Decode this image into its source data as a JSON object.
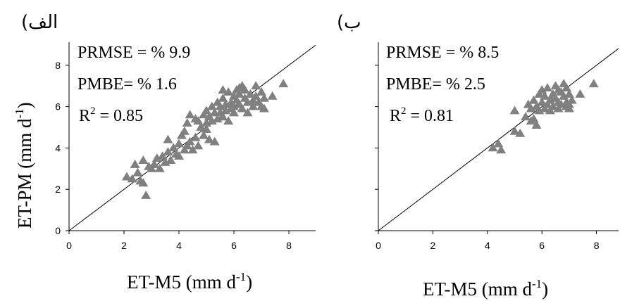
{
  "chart_data": [
    {
      "type": "scatter",
      "panel_label": "(الف",
      "xlabel": "ET-M5 (mm d-1)",
      "xlabel_main": "ET-M5 (mm d",
      "xlabel_sup": "-1",
      "xlabel_tail": ")",
      "ylabel_main": "ET-PM (mm d",
      "ylabel_sup": "-1",
      "ylabel_tail": ")",
      "xlim": [
        0,
        9
      ],
      "ylim": [
        0,
        9
      ],
      "xticks": [
        "0",
        "2",
        "4",
        "6",
        "8"
      ],
      "yticks": [
        "0",
        "2",
        "4",
        "6",
        "8"
      ],
      "reference_line": "1:1",
      "stats": {
        "prmse": "PRMSE = % 9.9",
        "pmbe": "PMBE= % 1.6",
        "r2_main": "R",
        "r2_sup": "2",
        "r2_tail": " = 0.85"
      },
      "points": [
        [
          2.1,
          2.6
        ],
        [
          2.3,
          2.5
        ],
        [
          2.4,
          3.2
        ],
        [
          2.5,
          2.8
        ],
        [
          2.6,
          2.4
        ],
        [
          2.7,
          2.3
        ],
        [
          2.8,
          1.7
        ],
        [
          2.7,
          3.4
        ],
        [
          2.9,
          3.1
        ],
        [
          3.0,
          3.0
        ],
        [
          3.1,
          3.2
        ],
        [
          3.2,
          3.5
        ],
        [
          3.3,
          3.0
        ],
        [
          3.4,
          3.6
        ],
        [
          3.5,
          3.3
        ],
        [
          3.6,
          3.8
        ],
        [
          3.6,
          4.4
        ],
        [
          3.7,
          3.4
        ],
        [
          3.8,
          4.0
        ],
        [
          3.9,
          3.7
        ],
        [
          4.0,
          4.2
        ],
        [
          4.0,
          3.6
        ],
        [
          4.1,
          4.6
        ],
        [
          4.2,
          3.9
        ],
        [
          4.2,
          4.8
        ],
        [
          4.3,
          4.1
        ],
        [
          4.3,
          5.2
        ],
        [
          4.4,
          4.3
        ],
        [
          4.4,
          5.6
        ],
        [
          4.5,
          3.9
        ],
        [
          4.6,
          4.5
        ],
        [
          4.6,
          5.4
        ],
        [
          4.7,
          4.1
        ],
        [
          4.8,
          5.0
        ],
        [
          4.9,
          5.6
        ],
        [
          4.9,
          4.6
        ],
        [
          5.0,
          5.8
        ],
        [
          5.0,
          4.9
        ],
        [
          5.1,
          5.5
        ],
        [
          5.1,
          4.4
        ],
        [
          5.2,
          6.0
        ],
        [
          5.2,
          5.3
        ],
        [
          5.3,
          5.7
        ],
        [
          5.3,
          4.3
        ],
        [
          5.4,
          6.2
        ],
        [
          5.4,
          5.4
        ],
        [
          5.5,
          6.0
        ],
        [
          5.5,
          5.7
        ],
        [
          5.6,
          6.4
        ],
        [
          5.6,
          5.5
        ],
        [
          5.7,
          6.1
        ],
        [
          5.7,
          5.8
        ],
        [
          5.8,
          6.7
        ],
        [
          5.8,
          5.3
        ],
        [
          5.9,
          6.2
        ],
        [
          5.9,
          5.9
        ],
        [
          6.0,
          6.5
        ],
        [
          6.0,
          6.0
        ],
        [
          6.0,
          5.7
        ],
        [
          6.1,
          6.8
        ],
        [
          6.1,
          6.3
        ],
        [
          6.2,
          6.1
        ],
        [
          6.2,
          6.6
        ],
        [
          6.3,
          7.0
        ],
        [
          6.3,
          5.9
        ],
        [
          6.4,
          6.4
        ],
        [
          6.4,
          6.8
        ],
        [
          6.5,
          6.2
        ],
        [
          6.5,
          5.7
        ],
        [
          6.6,
          6.6
        ],
        [
          6.7,
          6.3
        ],
        [
          6.7,
          6.0
        ],
        [
          6.8,
          7.0
        ],
        [
          6.8,
          6.5
        ],
        [
          6.9,
          6.2
        ],
        [
          7.0,
          6.7
        ],
        [
          7.0,
          6.0
        ],
        [
          7.1,
          6.4
        ],
        [
          7.1,
          5.9
        ],
        [
          7.4,
          6.5
        ],
        [
          7.8,
          7.1
        ],
        [
          5.6,
          6.8
        ],
        [
          5.0,
          5.2
        ],
        [
          4.7,
          5.3
        ],
        [
          6.2,
          6.9
        ]
      ]
    },
    {
      "type": "scatter",
      "panel_label": "(ب",
      "xlabel": "ET-M5 (mm d-1)",
      "xlabel_main": "ET-M5 (mm d",
      "xlabel_sup": "-1",
      "xlabel_tail": ")",
      "xlim": [
        0,
        9
      ],
      "ylim": [
        0,
        9
      ],
      "xticks": [
        "0",
        "2",
        "4",
        "6",
        "8"
      ],
      "reference_line": "1:1",
      "stats": {
        "prmse": "PRMSE = % 8.5",
        "pmbe": "PMBE= % 2.5",
        "r2_main": "R",
        "r2_sup": "2",
        "r2_tail": " = 0.81"
      },
      "points": [
        [
          4.2,
          4.0
        ],
        [
          4.4,
          4.2
        ],
        [
          4.5,
          3.9
        ],
        [
          5.0,
          4.8
        ],
        [
          5.0,
          5.8
        ],
        [
          5.2,
          4.7
        ],
        [
          5.4,
          5.5
        ],
        [
          5.5,
          6.1
        ],
        [
          5.6,
          5.9
        ],
        [
          5.7,
          5.4
        ],
        [
          5.7,
          6.3
        ],
        [
          5.8,
          6.0
        ],
        [
          5.8,
          5.1
        ],
        [
          5.9,
          6.6
        ],
        [
          5.9,
          5.8
        ],
        [
          6.0,
          6.2
        ],
        [
          6.0,
          6.8
        ],
        [
          6.1,
          5.9
        ],
        [
          6.1,
          6.5
        ],
        [
          6.2,
          6.1
        ],
        [
          6.2,
          6.9
        ],
        [
          6.3,
          6.3
        ],
        [
          6.3,
          5.8
        ],
        [
          6.4,
          6.6
        ],
        [
          6.4,
          6.0
        ],
        [
          6.5,
          6.4
        ],
        [
          6.5,
          7.0
        ],
        [
          6.6,
          6.2
        ],
        [
          6.6,
          5.9
        ],
        [
          6.7,
          6.7
        ],
        [
          6.7,
          6.1
        ],
        [
          6.8,
          6.5
        ],
        [
          6.8,
          7.1
        ],
        [
          6.9,
          6.2
        ],
        [
          6.9,
          6.0
        ],
        [
          7.0,
          6.6
        ],
        [
          7.0,
          5.9
        ],
        [
          7.1,
          6.3
        ],
        [
          7.4,
          6.6
        ],
        [
          7.9,
          7.1
        ],
        [
          5.6,
          5.3
        ],
        [
          6.6,
          6.8
        ],
        [
          6.9,
          6.9
        ],
        [
          7.0,
          6.1
        ]
      ]
    }
  ]
}
